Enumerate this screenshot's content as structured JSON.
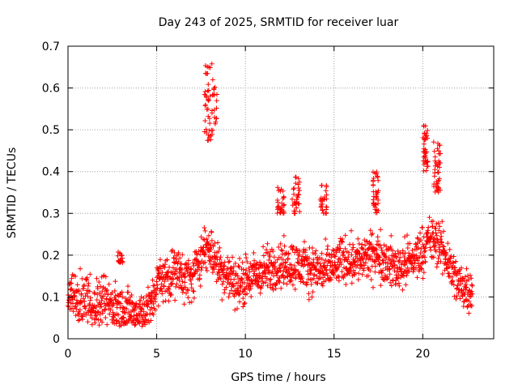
{
  "chart_data": {
    "type": "scatter",
    "title": "Day 243 of 2025, SRMTID for receiver luar",
    "xlabel": "GPS time / hours",
    "ylabel": "SRMTID / TECUs",
    "xlim": [
      0,
      24
    ],
    "ylim": [
      0,
      0.7
    ],
    "xticks": [
      0,
      5,
      10,
      15,
      20
    ],
    "yticks": [
      0,
      0.1,
      0.2,
      0.3,
      0.4,
      0.5,
      0.6,
      0.7
    ],
    "xtick_labels": [
      "0",
      "5",
      "10",
      "15",
      "20"
    ],
    "ytick_labels": [
      "0",
      "0.1",
      "0.2",
      "0.3",
      "0.4",
      "0.5",
      "0.6",
      "0.7"
    ],
    "grid": true,
    "marker": "plus",
    "color": "#ff0000",
    "series": [
      {
        "name": "SRMTID",
        "trend": [
          [
            0.0,
            0.1
          ],
          [
            1.0,
            0.08
          ],
          [
            2.0,
            0.09
          ],
          [
            3.0,
            0.07
          ],
          [
            4.0,
            0.06
          ],
          [
            4.6,
            0.07
          ],
          [
            5.0,
            0.13
          ],
          [
            6.0,
            0.16
          ],
          [
            7.0,
            0.14
          ],
          [
            7.5,
            0.2
          ],
          [
            8.0,
            0.22
          ],
          [
            8.5,
            0.17
          ],
          [
            9.5,
            0.13
          ],
          [
            10.5,
            0.15
          ],
          [
            11.5,
            0.17
          ],
          [
            12.5,
            0.18
          ],
          [
            13.5,
            0.17
          ],
          [
            14.5,
            0.16
          ],
          [
            15.5,
            0.19
          ],
          [
            16.5,
            0.19
          ],
          [
            17.5,
            0.2
          ],
          [
            18.5,
            0.17
          ],
          [
            19.5,
            0.19
          ],
          [
            20.5,
            0.24
          ],
          [
            21.0,
            0.22
          ],
          [
            21.5,
            0.18
          ],
          [
            22.0,
            0.13
          ],
          [
            22.8,
            0.12
          ]
        ],
        "peaks": [
          {
            "x": [
              7.7,
              8.4
            ],
            "y": [
              0.47,
              0.66
            ]
          },
          {
            "x": [
              11.8,
              12.2
            ],
            "y": [
              0.3,
              0.37
            ]
          },
          {
            "x": [
              12.6,
              13.1
            ],
            "y": [
              0.3,
              0.39
            ]
          },
          {
            "x": [
              14.2,
              14.6
            ],
            "y": [
              0.3,
              0.37
            ]
          },
          {
            "x": [
              17.2,
              17.5
            ],
            "y": [
              0.3,
              0.4
            ]
          },
          {
            "x": [
              20.0,
              20.3
            ],
            "y": [
              0.4,
              0.51
            ]
          },
          {
            "x": [
              20.6,
              21.0
            ],
            "y": [
              0.35,
              0.48
            ]
          },
          {
            "x": [
              2.8,
              3.1
            ],
            "y": [
              0.18,
              0.21
            ]
          }
        ],
        "x_range": [
          0.0,
          22.8
        ],
        "point_count": 1800
      }
    ]
  }
}
